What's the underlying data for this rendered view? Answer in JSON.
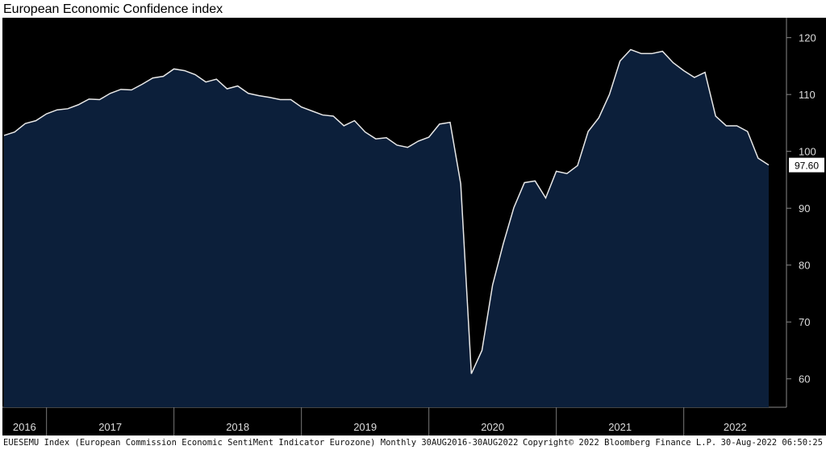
{
  "chart_data": {
    "type": "area",
    "title": "European Economic Confidence index",
    "year_labels": [
      "2016",
      "2017",
      "2018",
      "2019",
      "2020",
      "2021",
      "2022"
    ],
    "values": [
      102.8,
      103.4,
      104.9,
      105.4,
      106.6,
      107.3,
      107.5,
      108.2,
      109.2,
      109.1,
      110.2,
      110.9,
      110.8,
      111.8,
      112.9,
      113.2,
      114.5,
      114.2,
      113.5,
      112.2,
      112.7,
      111.0,
      111.5,
      110.2,
      109.8,
      109.5,
      109.1,
      109.1,
      107.8,
      107.1,
      106.4,
      106.2,
      104.5,
      105.4,
      103.4,
      102.2,
      102.4,
      101.1,
      100.7,
      101.8,
      102.5,
      104.8,
      105.1,
      94.3,
      60.9,
      65.0,
      76.5,
      83.7,
      90.1,
      94.5,
      94.8,
      91.8,
      96.5,
      96.1,
      97.5,
      103.5,
      105.9,
      110.0,
      115.9,
      117.9,
      117.2,
      117.2,
      117.6,
      115.6,
      114.2,
      113.0,
      113.9,
      106.2,
      104.5,
      104.5,
      103.5,
      98.8,
      97.6
    ],
    "last_value_label": "97.60",
    "fill_color": "#0c1f3a",
    "line_color": "#e8e8e8",
    "ylim": [
      55,
      123.5
    ],
    "yticks": [
      60,
      70,
      80,
      90,
      100,
      110,
      120
    ],
    "footer": {
      "source": "EUESEMU Index (European Commission Economic SentiMent Indicator Eurozone) Monthly 30AUG2016-30AUG2022",
      "copyright": "Copyright© 2022 Bloomberg Finance L.P.",
      "timestamp": "30-Aug-2022 06:50:25"
    }
  }
}
